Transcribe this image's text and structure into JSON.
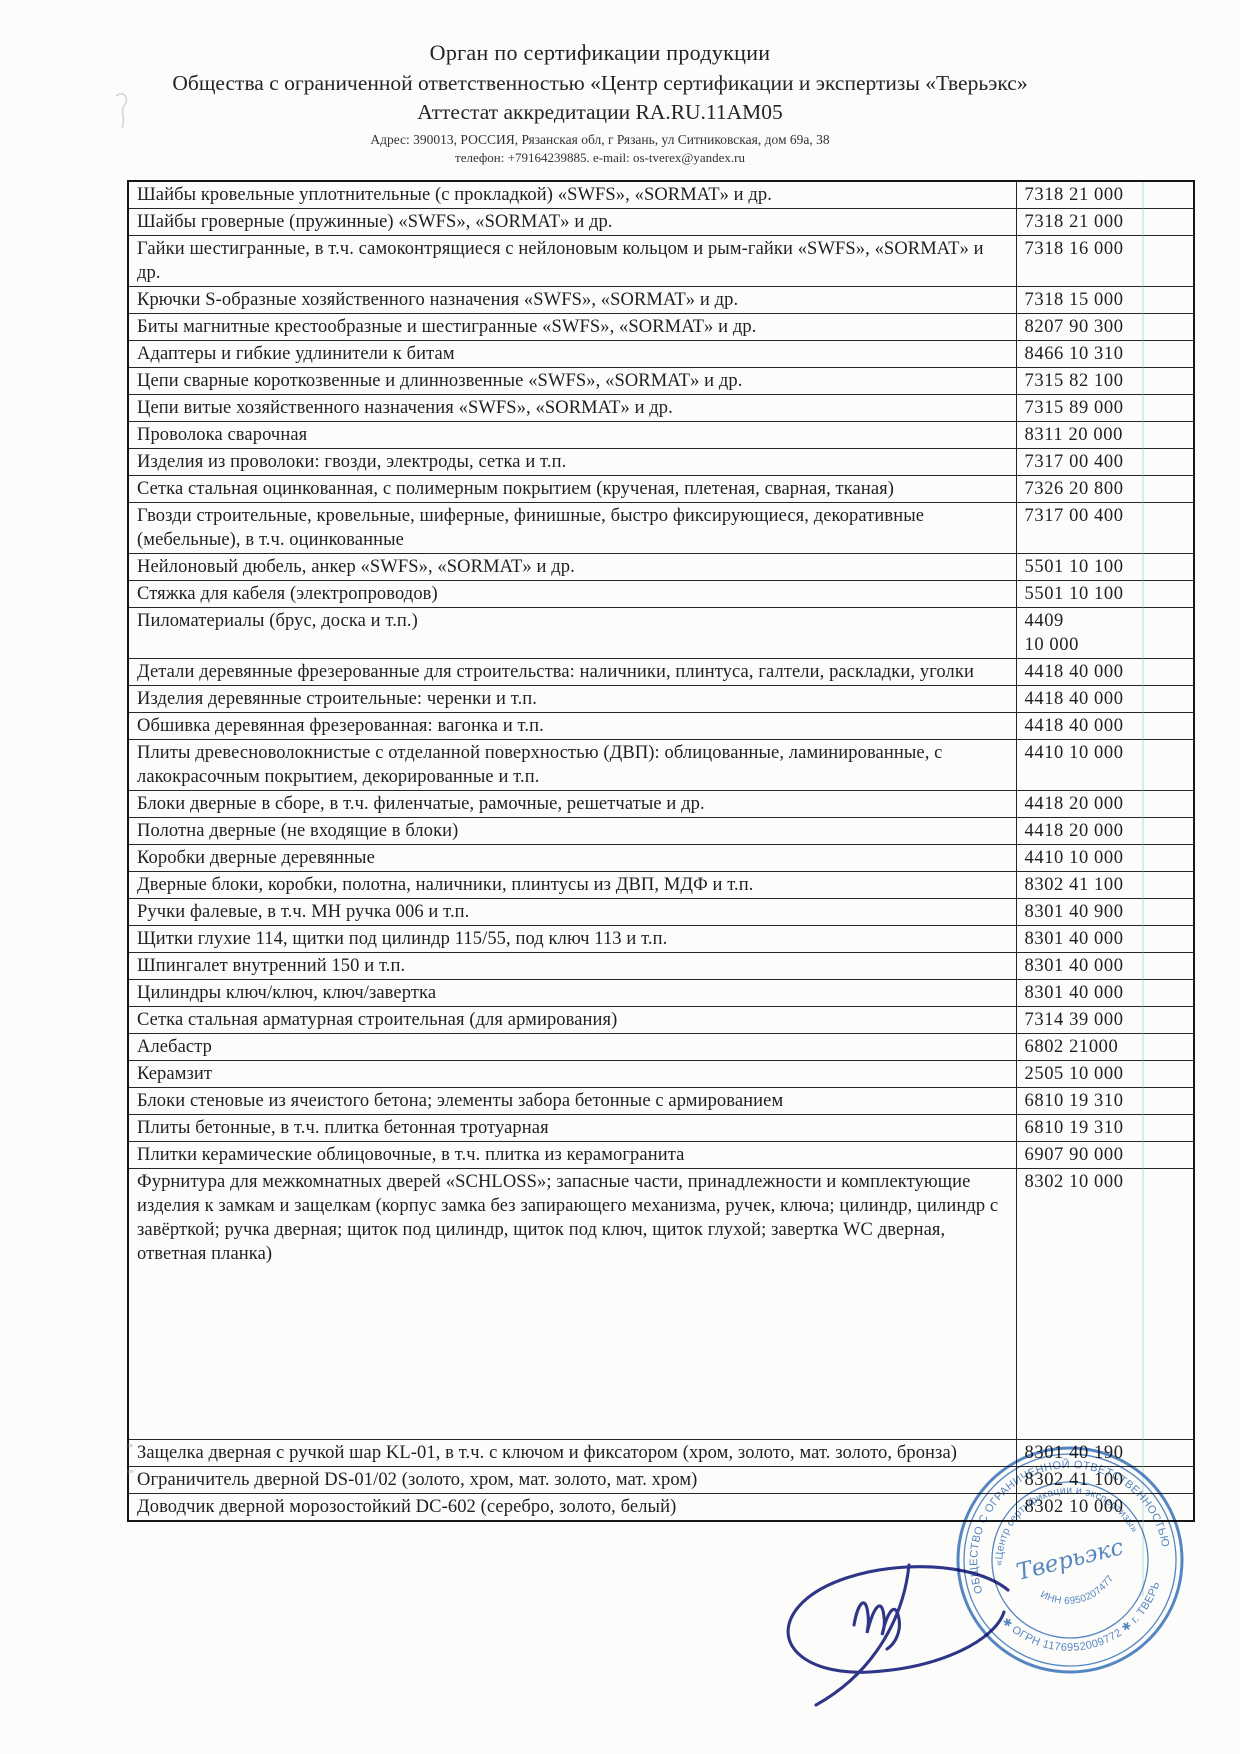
{
  "header": {
    "line1": "Орган по сертификации продукции",
    "line2": "Общества с ограниченной ответственностью «Центр сертификации и экспертизы «Тверьэкс»",
    "line3": "Аттестат аккредитации RA.RU.11AM05",
    "address": "Адрес: 390013, РОССИЯ, Рязанская обл, г Рязань, ул Ситниковская, дом 69а, 38",
    "contact": "телефон: +79164239885. e-mail: os-tverex@yandex.ru"
  },
  "table": {
    "rows": [
      {
        "product": "Шайбы кровельные уплотнительные (с прокладкой) «SWFS», «SORMAT» и др.",
        "code": "7318 21 000"
      },
      {
        "product": "Шайбы гроверные (пружинные) «SWFS», «SORMAT» и др.",
        "code": "7318 21 000"
      },
      {
        "product": "Гайки шестигранные, в т.ч. самоконтрящиеся с нейлоновым кольцом и рым-гайки «SWFS», «SORMAT» и др.",
        "code": "7318 16 000"
      },
      {
        "product": "Крючки S-образные хозяйственного назначения «SWFS», «SORMAT» и др.",
        "code": "7318 15 000"
      },
      {
        "product": "Биты магнитные крестообразные и шестигранные «SWFS», «SORMAT» и др.",
        "code": "8207 90 300"
      },
      {
        "product": "Адаптеры и гибкие удлинители к битам",
        "code": "8466 10 310"
      },
      {
        "product": "Цепи сварные короткозвенные и длиннозвенные «SWFS», «SORMAT» и др.",
        "code": "7315 82 100"
      },
      {
        "product": "Цепи витые хозяйственного назначения «SWFS», «SORMAT» и др.",
        "code": "7315 89 000"
      },
      {
        "product": "Проволока сварочная",
        "code": "8311 20 000"
      },
      {
        "product": "Изделия из проволоки: гвозди, электроды, сетка и т.п.",
        "code": "7317 00 400"
      },
      {
        "product": "Сетка стальная оцинкованная, с полимерным покрытием (крученая, плетеная, сварная, тканая)",
        "code": "7326 20 800"
      },
      {
        "product": "Гвозди строительные, кровельные, шиферные, финишные, быстро фиксирующиеся, декоративные (мебельные), в т.ч. оцинкованные",
        "code": "7317 00 400"
      },
      {
        "product": "Нейлоновый дюбель, анкер «SWFS», «SORMAT» и др.",
        "code": "5501 10 100"
      },
      {
        "product": "Стяжка для кабеля (электропроводов)",
        "code": "5501 10 100"
      },
      {
        "product": "Пиломатериалы (брус, доска и т.п.)",
        "code": "4409\n10 000"
      },
      {
        "product": "Детали деревянные фрезерованные для строительства: наличники, плинтуса, галтели, раскладки, уголки",
        "code": "4418 40 000"
      },
      {
        "product": "Изделия деревянные строительные: черенки и т.п.",
        "code": "4418 40 000"
      },
      {
        "product": "Обшивка деревянная фрезерованная: вагонка и т.п.",
        "code": "4418 40 000"
      },
      {
        "product": "Плиты древесноволокнистые с отделанной поверхностью (ДВП): облицованные, ламинированные, с лакокрасочным покрытием, декорированные и т.п.",
        "code": "4410 10 000"
      },
      {
        "product": "Блоки дверные в сборе, в т.ч. филенчатые, рамочные, решетчатые и др.",
        "code": "4418 20 000"
      },
      {
        "product": "Полотна дверные (не входящие в блоки)",
        "code": "4418 20 000"
      },
      {
        "product": "Коробки дверные деревянные",
        "code": "4410 10 000"
      },
      {
        "product": "Дверные блоки, коробки, полотна, наличники, плинтусы из ДВП, МДФ и т.п.",
        "code": "8302 41 100"
      },
      {
        "product": "Ручки фалевые, в т.ч. МН ручка 006 и т.п.",
        "code": "8301 40 900"
      },
      {
        "product": "Щитки глухие 114, щитки под цилиндр 115/55, под ключ 113 и т.п.",
        "code": "8301 40 000"
      },
      {
        "product": "Шпингалет внутренний 150 и т.п.",
        "code": "8301 40 000"
      },
      {
        "product": "Цилиндры ключ/ключ, ключ/завертка",
        "code": "8301 40 000"
      },
      {
        "product": "Сетка стальная арматурная строительная (для армирования)",
        "code": "7314 39 000"
      },
      {
        "product": "Алебастр",
        "code": "6802 21000"
      },
      {
        "product": "Керамзит",
        "code": "2505 10 000"
      },
      {
        "product": "Блоки стеновые из ячеистого бетона; элементы забора бетонные с армированием",
        "code": "6810 19 310"
      },
      {
        "product": "Плиты бетонные, в т.ч. плитка бетонная тротуарная",
        "code": "6810 19 310"
      },
      {
        "product": "Плитки керамические облицовочные, в т.ч. плитка из керамогранита",
        "code": "6907 90 000"
      },
      {
        "product": "Фурнитура для межкомнатных дверей «SCHLOSS»; запасные части, принадлежности и комплектующие изделия к замкам и защелкам (корпус замка без запирающего механизма, ручек, ключа; цилиндр, цилиндр с завёрткой; ручка дверная; щиток под цилиндр, щиток под ключ, щиток глухой; завертка WC дверная, ответная планка)",
        "code": "8302 10 000"
      },
      {
        "product": "Защелка дверная с ручкой шар KL-01, в т.ч. с ключом и фиксатором (хром, золото, мат. золото, бронза)",
        "code": "8301 40 190"
      },
      {
        "product": "Ограничитель дверной DS-01/02 (золото, хром, мат. золото, мат. хром)",
        "code": "8302 41 100"
      },
      {
        "product": "Доводчик дверной морозостойкий DC-602 (серебро, золото, белый)",
        "code": "8302 10 000"
      }
    ]
  },
  "stamp": {
    "ring_top": "ОБЩЕСТВО С ОГРАНИЧЕННОЙ ОТВЕТСТВЕННОСТЬЮ",
    "ring_bottom": "✱ ОГРН 1176952009772 ✱ г. ТВЕРЬ",
    "mid_top": "«Центр сертификации и экспертизы»",
    "mid_bottom": "ИНН 6950207477",
    "center": "Тверьэкс",
    "color": "#4077bd"
  },
  "signature": {
    "color": "#30368a"
  }
}
